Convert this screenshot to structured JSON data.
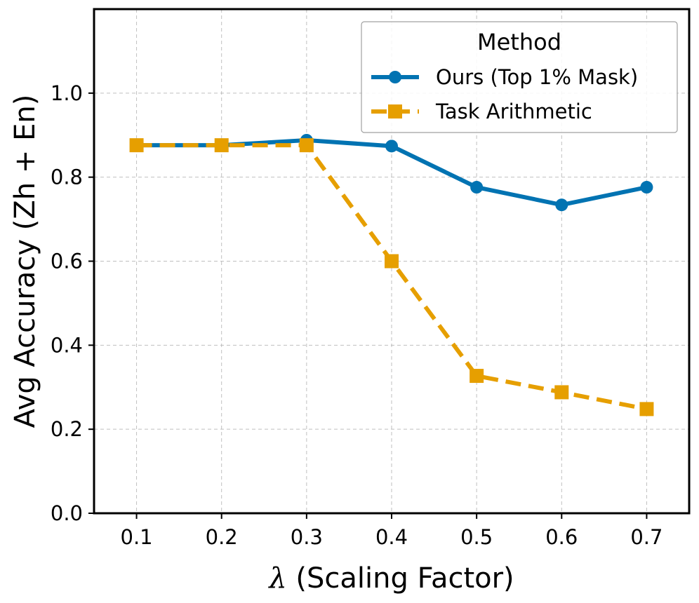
{
  "chart_data": {
    "type": "line",
    "x": [
      0.1,
      0.2,
      0.3,
      0.4,
      0.5,
      0.6,
      0.7
    ],
    "xticks": [
      "0.1",
      "0.2",
      "0.3",
      "0.4",
      "0.5",
      "0.6",
      "0.7"
    ],
    "yticks": [
      "0.0",
      "0.2",
      "0.4",
      "0.6",
      "0.8",
      "1.0"
    ],
    "xlim": [
      0.05,
      0.75
    ],
    "ylim": [
      0.0,
      1.2
    ],
    "xlabel_symbol": "λ",
    "xlabel_text": " (Scaling Factor)",
    "ylabel": "Avg Accuracy (Zh + En)",
    "grid": true,
    "legend": {
      "title": "Method",
      "position": "top-right"
    },
    "series": [
      {
        "name": "Ours (Top 1% Mask)",
        "color": "#0173b2",
        "marker": "circle",
        "linestyle": "solid",
        "values": [
          0.876,
          0.876,
          0.888,
          0.874,
          0.776,
          0.734,
          0.776
        ]
      },
      {
        "name": "Task Arithmetic",
        "color": "#e69f00",
        "marker": "square",
        "linestyle": "dashed",
        "values": [
          0.876,
          0.876,
          0.876,
          0.6,
          0.327,
          0.288,
          0.248
        ]
      }
    ]
  }
}
